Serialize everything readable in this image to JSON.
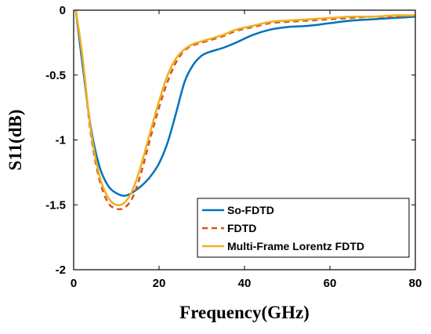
{
  "chart_data": {
    "type": "line",
    "title": "",
    "xlabel": "Frequency(GHz)",
    "ylabel": "S11(dB)",
    "xlim": [
      0,
      80
    ],
    "ylim": [
      -2,
      0
    ],
    "xticks": [
      0,
      20,
      40,
      60,
      80
    ],
    "xtick_labels": [
      "0",
      "20",
      "40",
      "60",
      "80"
    ],
    "yticks": [
      0,
      -0.5,
      -1,
      -1.5,
      -2
    ],
    "ytick_labels": [
      "0",
      "-0.5",
      "-1",
      "-1.5",
      "-2"
    ],
    "grid": false,
    "legend_position": "bottom-right",
    "series": [
      {
        "name": "So-FDTD",
        "color": "#0072BD",
        "style": "solid",
        "x": [
          0.5,
          2,
          4,
          6,
          8,
          10,
          12,
          14,
          16,
          18,
          20,
          22,
          24,
          26,
          28,
          30,
          32,
          35,
          38,
          42,
          46,
          50,
          55,
          60,
          65,
          70,
          75,
          80
        ],
        "y": [
          0,
          -0.4,
          -0.9,
          -1.2,
          -1.35,
          -1.41,
          -1.43,
          -1.4,
          -1.35,
          -1.28,
          -1.18,
          -1.02,
          -0.79,
          -0.55,
          -0.42,
          -0.35,
          -0.32,
          -0.29,
          -0.25,
          -0.19,
          -0.15,
          -0.13,
          -0.12,
          -0.1,
          -0.08,
          -0.07,
          -0.06,
          -0.05
        ]
      },
      {
        "name": "FDTD",
        "color": "#D95319",
        "style": "dashed",
        "x": [
          0.5,
          2,
          4,
          6,
          8,
          10,
          12,
          14,
          16,
          18,
          20,
          22,
          24,
          26,
          28,
          30,
          32,
          35,
          38,
          42,
          46,
          50,
          55,
          60,
          65,
          70,
          75,
          80
        ],
        "y": [
          0,
          -0.35,
          -0.95,
          -1.3,
          -1.48,
          -1.53,
          -1.52,
          -1.43,
          -1.23,
          -0.98,
          -0.75,
          -0.55,
          -0.4,
          -0.31,
          -0.27,
          -0.25,
          -0.23,
          -0.2,
          -0.16,
          -0.13,
          -0.1,
          -0.09,
          -0.08,
          -0.07,
          -0.06,
          -0.05,
          -0.05,
          -0.04
        ]
      },
      {
        "name": "Multi-Frame Lorentz FDTD",
        "color": "#EDB120",
        "style": "solid",
        "x": [
          0.5,
          2,
          4,
          6,
          8,
          10,
          12,
          14,
          16,
          18,
          20,
          22,
          24,
          26,
          28,
          30,
          32,
          35,
          38,
          42,
          46,
          50,
          55,
          60,
          65,
          70,
          75,
          80
        ],
        "y": [
          0,
          -0.34,
          -0.92,
          -1.27,
          -1.44,
          -1.5,
          -1.48,
          -1.37,
          -1.17,
          -0.93,
          -0.7,
          -0.5,
          -0.37,
          -0.3,
          -0.26,
          -0.24,
          -0.22,
          -0.19,
          -0.15,
          -0.12,
          -0.09,
          -0.08,
          -0.07,
          -0.06,
          -0.05,
          -0.05,
          -0.04,
          -0.04
        ]
      }
    ]
  }
}
